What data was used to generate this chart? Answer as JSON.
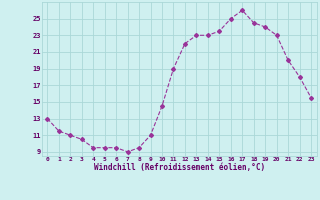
{
  "x": [
    0,
    1,
    2,
    3,
    4,
    5,
    6,
    7,
    8,
    9,
    10,
    11,
    12,
    13,
    14,
    15,
    16,
    17,
    18,
    19,
    20,
    21,
    22,
    23
  ],
  "y": [
    13,
    11.5,
    11,
    10.5,
    9.5,
    9.5,
    9.5,
    9,
    9.5,
    11,
    14.5,
    19,
    22,
    23,
    23,
    23.5,
    25,
    26,
    24.5,
    24,
    23,
    20,
    18,
    15.5
  ],
  "line_color": "#993399",
  "marker": "D",
  "marker_size": 2,
  "bg_color": "#cff0f0",
  "grid_color": "#aad8d8",
  "xlabel": "Windchill (Refroidissement éolien,°C)",
  "xlabel_color": "#660066",
  "tick_color": "#660066",
  "ylim": [
    8.5,
    27
  ],
  "yticks": [
    9,
    11,
    13,
    15,
    17,
    19,
    21,
    23,
    25
  ],
  "xticks": [
    0,
    1,
    2,
    3,
    4,
    5,
    6,
    7,
    8,
    9,
    10,
    11,
    12,
    13,
    14,
    15,
    16,
    17,
    18,
    19,
    20,
    21,
    22,
    23
  ],
  "figsize": [
    3.2,
    2.0
  ],
  "dpi": 100
}
